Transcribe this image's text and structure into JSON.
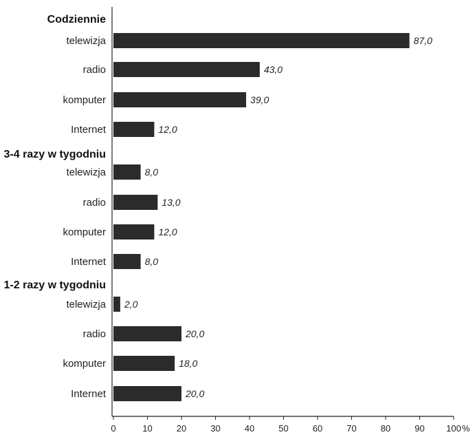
{
  "chart_data": {
    "type": "bar",
    "orientation": "horizontal",
    "groups": [
      {
        "label": "Codziennie",
        "items": [
          {
            "category": "telewizja",
            "value": 87.0,
            "value_label": "87,0"
          },
          {
            "category": "radio",
            "value": 43.0,
            "value_label": "43,0"
          },
          {
            "category": "komputer",
            "value": 39.0,
            "value_label": "39,0"
          },
          {
            "category": "Internet",
            "value": 12.0,
            "value_label": "12,0"
          }
        ]
      },
      {
        "label": "3-4 razy w tygodniu",
        "items": [
          {
            "category": "telewizja",
            "value": 8.0,
            "value_label": "8,0"
          },
          {
            "category": "radio",
            "value": 13.0,
            "value_label": "13,0"
          },
          {
            "category": "komputer",
            "value": 12.0,
            "value_label": "12,0"
          },
          {
            "category": "Internet",
            "value": 8.0,
            "value_label": "8,0"
          }
        ]
      },
      {
        "label": "1-2 razy w tygodniu",
        "items": [
          {
            "category": "telewizja",
            "value": 2.0,
            "value_label": "2,0"
          },
          {
            "category": "radio",
            "value": 20.0,
            "value_label": "20,0"
          },
          {
            "category": "komputer",
            "value": 18.0,
            "value_label": "18,0"
          },
          {
            "category": "Internet",
            "value": 20.0,
            "value_label": "20,0"
          }
        ]
      }
    ],
    "x_ticks": [
      "0",
      "10",
      "20",
      "30",
      "40",
      "50",
      "60",
      "70",
      "80",
      "90",
      "100"
    ],
    "x_unit": "%",
    "xlim": [
      0,
      100
    ],
    "bar_color": "#2b2b2b",
    "grid": false
  }
}
